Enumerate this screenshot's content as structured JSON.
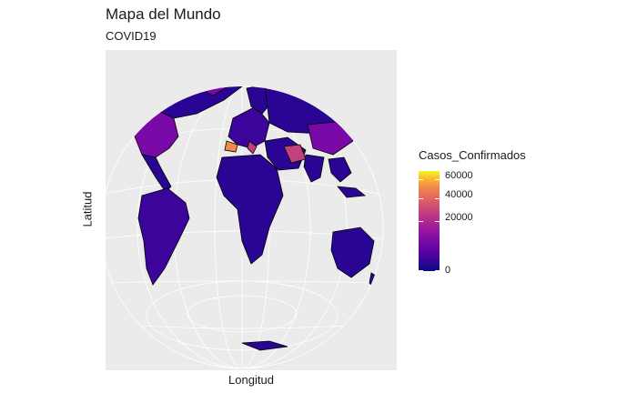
{
  "title": "Mapa del Mundo",
  "subtitle": "COVID19",
  "xlabel": "Longitud",
  "ylabel": "Latitud",
  "legend": {
    "title": "Casos_Confirmados",
    "ticks": [
      {
        "label": "60000",
        "value": 60000
      },
      {
        "label": "40000",
        "value": 40000
      },
      {
        "label": "20000",
        "value": 20000
      },
      {
        "label": "0",
        "value": 0
      }
    ],
    "colors": [
      "#0d0887",
      "#5c01a6",
      "#9c179e",
      "#cc4778",
      "#ed7953",
      "#fdb42f",
      "#f0f921"
    ]
  },
  "colors": {
    "panel_bg": "#ebebeb",
    "graticule": "#ffffff",
    "low": "#2a0593",
    "mid": "#7a0aa8",
    "high": "#c2407d",
    "very_high": "#f58a48"
  }
}
